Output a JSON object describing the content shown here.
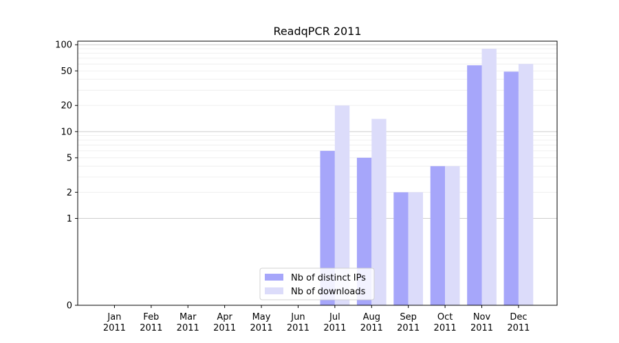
{
  "chart_data": {
    "type": "bar",
    "title": "ReadqPCR 2011",
    "xlabel": "",
    "ylabel": "",
    "yscale": "symlog",
    "ylim": [
      0,
      110
    ],
    "yticks": [
      0,
      1,
      2,
      5,
      10,
      20,
      50,
      100
    ],
    "grid": true,
    "legend_position": "lower-center",
    "categories": [
      "Jan\n2011",
      "Feb\n2011",
      "Mar\n2011",
      "Apr\n2011",
      "May\n2011",
      "Jun\n2011",
      "Jul\n2011",
      "Aug\n2011",
      "Sep\n2011",
      "Oct\n2011",
      "Nov\n2011",
      "Dec\n2011"
    ],
    "series": [
      {
        "name": "Nb of distinct IPs",
        "color": "#a6a6fa",
        "values": [
          0,
          0,
          0,
          0,
          0,
          0,
          6,
          5,
          2,
          4,
          58,
          49
        ]
      },
      {
        "name": "Nb of downloads",
        "color": "#dcdcfa",
        "values": [
          0,
          0,
          0,
          0,
          0,
          0,
          20,
          14,
          2,
          4,
          90,
          60
        ]
      }
    ]
  }
}
